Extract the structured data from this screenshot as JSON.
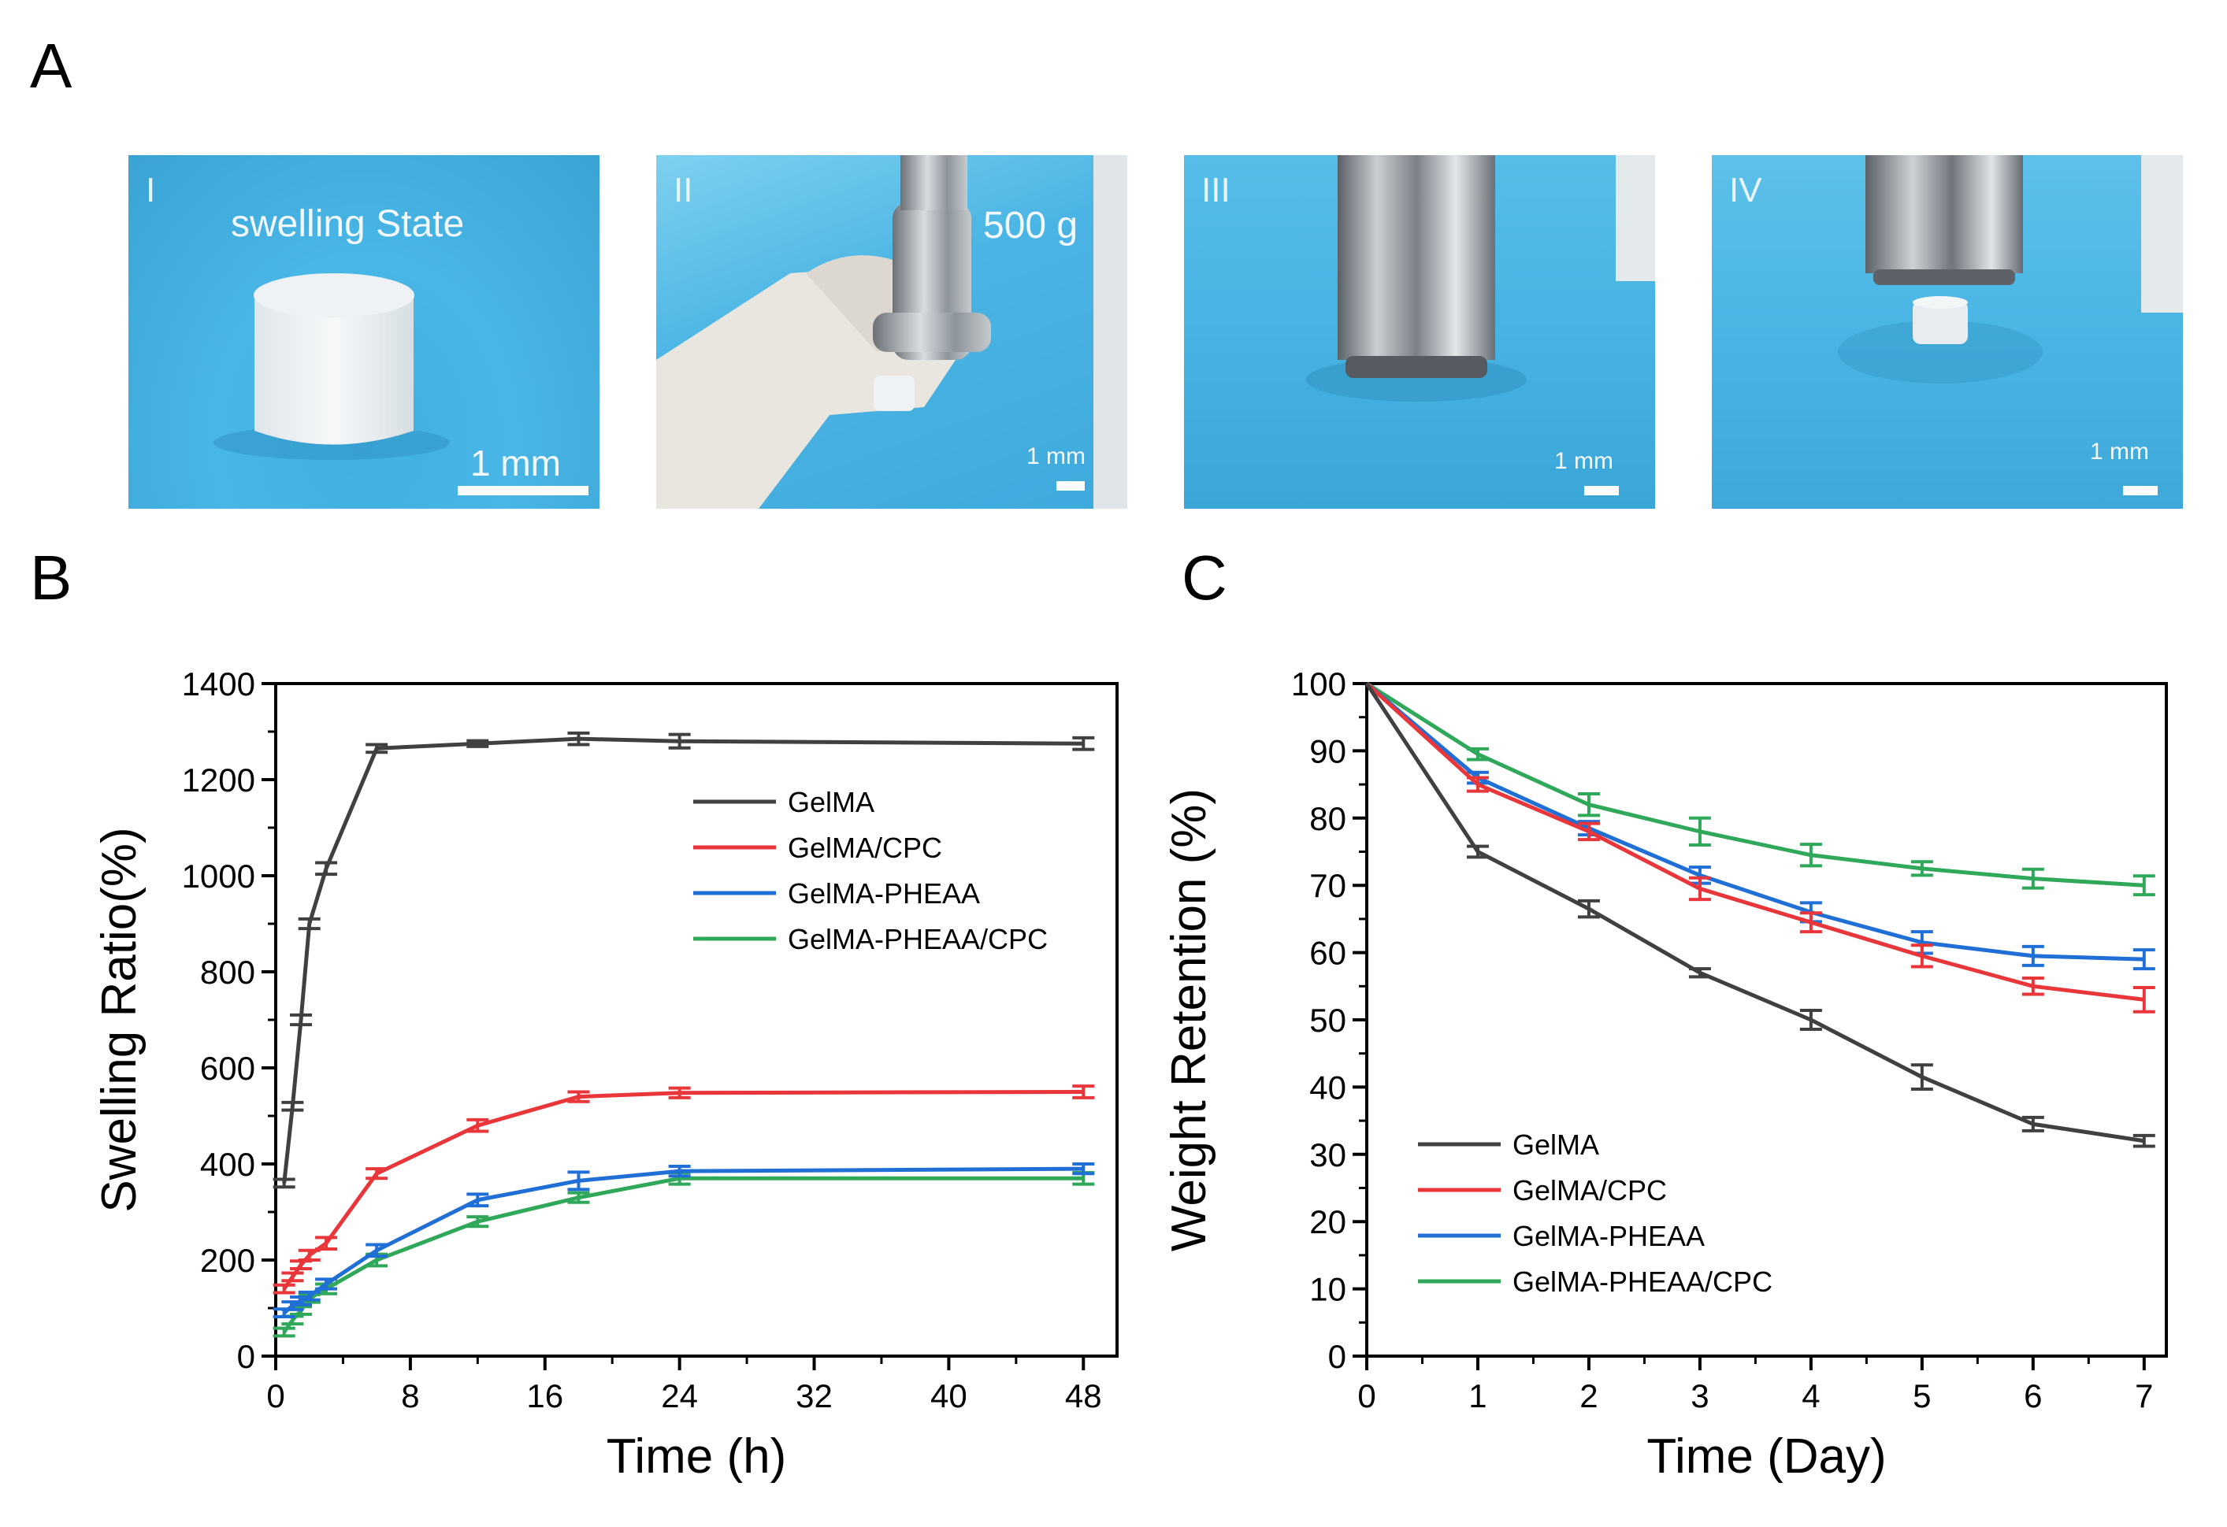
{
  "panels": {
    "a_label": "A",
    "b_label": "B",
    "c_label": "C"
  },
  "photos": [
    {
      "roman": "I",
      "caption": "swelling State",
      "scale": "1 mm"
    },
    {
      "roman": "II",
      "caption": "500 g",
      "scale": "1 mm"
    },
    {
      "roman": "III",
      "caption": "",
      "scale": "1 mm"
    },
    {
      "roman": "IV",
      "caption": "",
      "scale": "1 mm"
    }
  ],
  "colors": {
    "GelMA": "#404040",
    "GelMA/CPC": "#e8363a",
    "GelMA-PHEAA": "#1f6fd6",
    "GelMA-PHEAA/CPC": "#2fa85a",
    "photo_blue": "#4cb8e8"
  },
  "chart_data": [
    {
      "type": "line",
      "panel": "B",
      "xlabel": "Time (h)",
      "ylabel": "Swelling Ratio(%)",
      "xlim": [
        0,
        50
      ],
      "ylim": [
        0,
        1400
      ],
      "xticks": [
        0,
        8,
        16,
        24,
        32,
        40,
        48
      ],
      "yticks": [
        0,
        200,
        400,
        600,
        800,
        1000,
        1200,
        1400
      ],
      "legend_position": "top-right",
      "series": [
        {
          "name": "GelMA",
          "x": [
            0.5,
            1,
            1.5,
            2,
            3,
            6,
            12,
            18,
            24,
            48
          ],
          "y": [
            360,
            520,
            700,
            900,
            1015,
            1265,
            1275,
            1285,
            1280,
            1275
          ],
          "err": [
            8,
            8,
            10,
            10,
            12,
            8,
            6,
            12,
            14,
            12
          ]
        },
        {
          "name": "GelMA/CPC",
          "x": [
            0.5,
            1,
            1.5,
            2,
            3,
            6,
            12,
            18,
            24,
            48
          ],
          "y": [
            140,
            165,
            190,
            210,
            235,
            380,
            480,
            540,
            548,
            550
          ],
          "err": [
            8,
            8,
            8,
            10,
            12,
            10,
            12,
            10,
            10,
            12
          ]
        },
        {
          "name": "GelMA-PHEAA",
          "x": [
            0.5,
            1,
            1.5,
            2,
            3,
            6,
            12,
            18,
            24,
            48
          ],
          "y": [
            90,
            105,
            115,
            125,
            150,
            220,
            325,
            365,
            385,
            390
          ],
          "err": [
            8,
            8,
            8,
            8,
            10,
            12,
            12,
            18,
            10,
            10
          ]
        },
        {
          "name": "GelMA-PHEAA/CPC",
          "x": [
            0.5,
            1,
            1.5,
            2,
            3,
            6,
            12,
            18,
            24,
            48
          ],
          "y": [
            50,
            75,
            95,
            120,
            140,
            200,
            280,
            330,
            370,
            370
          ],
          "err": [
            8,
            8,
            8,
            8,
            10,
            12,
            10,
            10,
            12,
            12
          ]
        }
      ]
    },
    {
      "type": "line",
      "panel": "C",
      "xlabel": "Time (Day)",
      "ylabel": "Weight Retention  (%)",
      "xlim": [
        0,
        7.2
      ],
      "ylim": [
        0,
        100
      ],
      "xticks": [
        0,
        1,
        2,
        3,
        4,
        5,
        6,
        7
      ],
      "yticks": [
        0,
        10,
        20,
        30,
        40,
        50,
        60,
        70,
        80,
        90,
        100
      ],
      "legend_position": "bottom-left",
      "series": [
        {
          "name": "GelMA",
          "x": [
            0,
            1,
            2,
            3,
            4,
            5,
            6,
            7
          ],
          "y": [
            100,
            75,
            66.5,
            57,
            50,
            41.5,
            34.5,
            32
          ],
          "err": [
            0,
            0.8,
            1.2,
            0.6,
            1.4,
            1.8,
            1.0,
            0.8
          ]
        },
        {
          "name": "GelMA/CPC",
          "x": [
            0,
            1,
            2,
            3,
            4,
            5,
            6,
            7
          ],
          "y": [
            100,
            85,
            78,
            69.5,
            64.5,
            59.5,
            55,
            53
          ],
          "err": [
            0,
            1.0,
            1.2,
            1.6,
            1.4,
            1.6,
            1.2,
            1.8
          ]
        },
        {
          "name": "GelMA-PHEAA",
          "x": [
            0,
            1,
            2,
            3,
            4,
            5,
            6,
            7
          ],
          "y": [
            100,
            86,
            78.5,
            71.5,
            66,
            61.5,
            59.5,
            59
          ],
          "err": [
            0,
            0.8,
            1.0,
            1.2,
            1.4,
            1.6,
            1.4,
            1.4
          ]
        },
        {
          "name": "GelMA-PHEAA/CPC",
          "x": [
            0,
            1,
            2,
            3,
            4,
            5,
            6,
            7
          ],
          "y": [
            100,
            89.5,
            82,
            78,
            74.5,
            72.5,
            71,
            70
          ],
          "err": [
            0,
            0.8,
            1.6,
            2.0,
            1.6,
            1.0,
            1.4,
            1.4
          ]
        }
      ]
    }
  ]
}
